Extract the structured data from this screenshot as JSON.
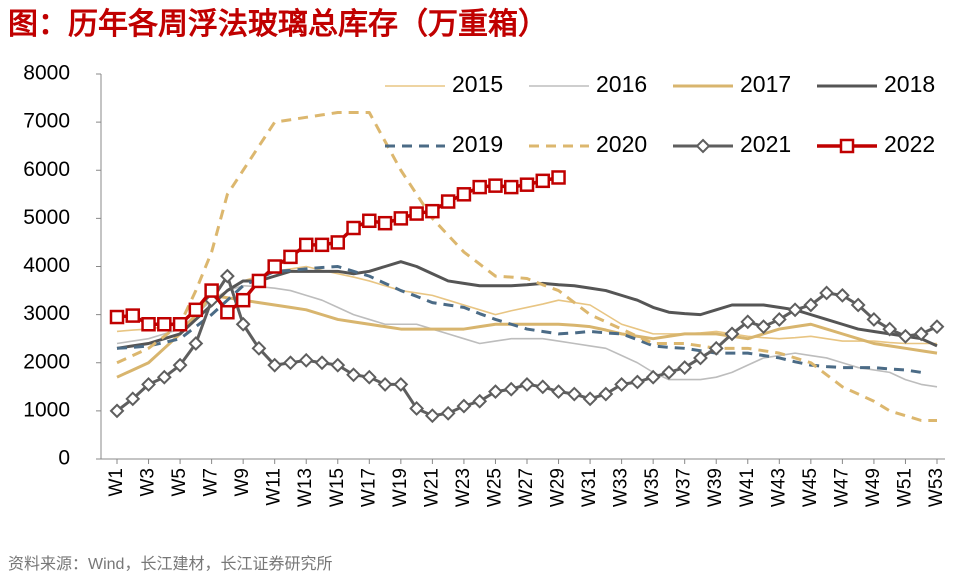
{
  "chart_data": {
    "type": "line",
    "title": "图：历年各周浮法玻璃总库存（万重箱）",
    "source": "资料来源：Wind，长江建材，长江证券研究所",
    "categories": [
      "W1",
      null,
      "W3",
      null,
      "W5",
      null,
      "W7",
      null,
      "W9",
      null,
      "W11",
      null,
      "W13",
      null,
      "W15",
      null,
      "W17",
      null,
      "W19",
      null,
      "W21",
      null,
      "W23",
      null,
      "W25",
      null,
      "W27",
      null,
      "W29",
      null,
      "W31",
      null,
      "W33",
      null,
      "W35",
      null,
      "W37",
      null,
      "W39",
      null,
      "W41",
      null,
      "W43",
      null,
      "W45",
      null,
      "W47",
      null,
      "W49",
      null,
      "W51",
      null,
      "W53"
    ],
    "ylim": [
      0,
      8000
    ],
    "yticks": [
      0,
      1000,
      2000,
      3000,
      4000,
      5000,
      6000,
      7000,
      8000
    ],
    "grid": false,
    "legend": "top-right",
    "series": [
      {
        "name": "2015",
        "color": "#e8c583",
        "width": 1.6,
        "dash": false,
        "marker": null,
        "values": [
          2650,
          2680,
          2700,
          2750,
          2800,
          3050,
          3300,
          3500,
          3700,
          3800,
          3900,
          3950,
          4000,
          3920,
          3850,
          3780,
          3700,
          3600,
          3500,
          3450,
          3400,
          3300,
          3200,
          3100,
          3000,
          3080,
          3150,
          3220,
          3300,
          3250,
          3200,
          3000,
          2800,
          2700,
          2600,
          2600,
          2600,
          2620,
          2650,
          2600,
          2550,
          2520,
          2500,
          2520,
          2550,
          2500,
          2450,
          2450,
          2450,
          2420,
          2400,
          2400,
          2400
        ]
      },
      {
        "name": "2016",
        "color": "#bdbdbd",
        "width": 1.6,
        "dash": false,
        "marker": null,
        "values": [
          2400,
          2450,
          2500,
          2600,
          2700,
          3000,
          3300,
          3500,
          3600,
          3580,
          3550,
          3500,
          3400,
          3300,
          3150,
          3000,
          2900,
          2800,
          2800,
          2800,
          2700,
          2600,
          2500,
          2400,
          2450,
          2500,
          2500,
          2500,
          2450,
          2400,
          2350,
          2300,
          2150,
          2000,
          1800,
          1650,
          1650,
          1650,
          1700,
          1800,
          1950,
          2100,
          2150,
          2200,
          2150,
          2100,
          2000,
          1900,
          1850,
          1800,
          1650,
          1550,
          1500
        ]
      },
      {
        "name": "2017",
        "color": "#d8b56e",
        "width": 3,
        "dash": false,
        "marker": null,
        "values": [
          1700,
          1850,
          2000,
          2300,
          2600,
          3000,
          3400,
          3350,
          3300,
          3250,
          3200,
          3150,
          3100,
          3000,
          2900,
          2850,
          2800,
          2750,
          2700,
          2700,
          2700,
          2700,
          2700,
          2750,
          2800,
          2800,
          2800,
          2800,
          2800,
          2780,
          2750,
          2680,
          2600,
          2550,
          2500,
          2550,
          2600,
          2600,
          2600,
          2550,
          2500,
          2600,
          2700,
          2750,
          2800,
          2700,
          2600,
          2500,
          2400,
          2350,
          2300,
          2250,
          2200
        ]
      },
      {
        "name": "2018",
        "color": "#555555",
        "width": 3,
        "dash": false,
        "marker": null,
        "values": [
          2300,
          2350,
          2400,
          2500,
          2600,
          2900,
          3200,
          3500,
          3700,
          3700,
          3800,
          3900,
          3900,
          3900,
          3900,
          3850,
          3900,
          4000,
          4100,
          4000,
          3850,
          3700,
          3650,
          3600,
          3600,
          3600,
          3620,
          3650,
          3620,
          3600,
          3550,
          3500,
          3400,
          3300,
          3150,
          3050,
          3020,
          3000,
          3100,
          3200,
          3200,
          3200,
          3150,
          3100,
          3000,
          2900,
          2800,
          2700,
          2650,
          2600,
          2550,
          2500,
          2350
        ]
      },
      {
        "name": "2019",
        "color": "#4b6b86",
        "width": 3,
        "dash": true,
        "marker": null,
        "values": [
          2300,
          2320,
          2350,
          2420,
          2500,
          2750,
          3000,
          3300,
          3600,
          3750,
          3900,
          3920,
          3950,
          3980,
          4000,
          3900,
          3800,
          3650,
          3500,
          3380,
          3250,
          3200,
          3150,
          3020,
          2900,
          2800,
          2700,
          2650,
          2600,
          2620,
          2650,
          2620,
          2600,
          2480,
          2350,
          2320,
          2300,
          2250,
          2200,
          2200,
          2200,
          2150,
          2100,
          2020,
          1950,
          1920,
          1900,
          1900,
          1900,
          1870,
          1850,
          1800,
          null
        ]
      },
      {
        "name": "2020",
        "color": "#dcb76e",
        "width": 3,
        "dash": true,
        "marker": null,
        "values": [
          2000,
          2150,
          2300,
          2550,
          2800,
          3500,
          4300,
          5500,
          6000,
          6500,
          7000,
          7050,
          7100,
          7150,
          7200,
          7200,
          7200,
          6600,
          6000,
          5500,
          5000,
          4650,
          4300,
          4050,
          3800,
          3780,
          3750,
          3620,
          3500,
          3250,
          3000,
          2850,
          2700,
          2550,
          2400,
          2400,
          2400,
          2350,
          2300,
          2300,
          2300,
          2250,
          2200,
          2100,
          2000,
          1750,
          1500,
          1350,
          1200,
          1000,
          900,
          800,
          800
        ]
      },
      {
        "name": "2021",
        "color": "#5e5e5e",
        "width": 3,
        "dash": false,
        "marker": "diamond",
        "values": [
          1000,
          1250,
          1550,
          1700,
          1950,
          2400,
          3300,
          3800,
          2800,
          2300,
          1950,
          2000,
          2050,
          2000,
          1950,
          1750,
          1700,
          1550,
          1550,
          1050,
          900,
          950,
          1100,
          1200,
          1400,
          1450,
          1550,
          1500,
          1400,
          1350,
          1250,
          1350,
          1550,
          1600,
          1700,
          1800,
          1900,
          2100,
          2300,
          2600,
          2850,
          2750,
          2900,
          3100,
          3200,
          3450,
          3400,
          3200,
          2900,
          2700,
          2550,
          2600,
          2750
        ]
      },
      {
        "name": "2022",
        "color": "#c00000",
        "width": 3.5,
        "dash": false,
        "marker": "square",
        "values": [
          2950,
          2980,
          2800,
          2800,
          2800,
          3100,
          3500,
          3050,
          3300,
          3700,
          4000,
          4200,
          4450,
          4450,
          4500,
          4800,
          4950,
          4900,
          5000,
          5100,
          5150,
          5350,
          5500,
          5650,
          5680,
          5650,
          5700,
          5780,
          5850,
          null,
          null,
          null,
          null,
          null,
          null,
          null,
          null,
          null,
          null,
          null,
          null,
          null,
          null,
          null,
          null,
          null,
          null,
          null,
          null,
          null,
          null,
          null,
          null
        ]
      }
    ]
  }
}
